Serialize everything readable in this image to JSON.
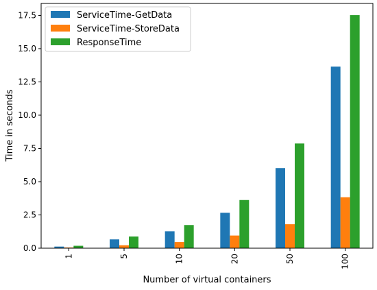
{
  "chart_data": {
    "type": "bar",
    "title": "",
    "xlabel": "Number of virtual containers",
    "ylabel": "Time in seconds",
    "categories": [
      "1",
      "5",
      "10",
      "20",
      "50",
      "100"
    ],
    "series": [
      {
        "name": "ServiceTime-GetData",
        "color": "#1f77b4",
        "values": [
          0.12,
          0.66,
          1.27,
          2.66,
          6.02,
          13.65
        ]
      },
      {
        "name": "ServiceTime-StoreData",
        "color": "#ff7f0e",
        "values": [
          0.05,
          0.22,
          0.46,
          0.95,
          1.8,
          3.83
        ]
      },
      {
        "name": "ResponseTime",
        "color": "#2ca02c",
        "values": [
          0.18,
          0.88,
          1.74,
          3.62,
          7.87,
          17.52
        ]
      }
    ],
    "ylim": [
      0,
      18.4
    ],
    "yticks": [
      "0.0",
      "2.5",
      "5.0",
      "7.5",
      "10.0",
      "12.5",
      "15.0",
      "17.5"
    ],
    "legend": "top-left",
    "grid": false
  }
}
